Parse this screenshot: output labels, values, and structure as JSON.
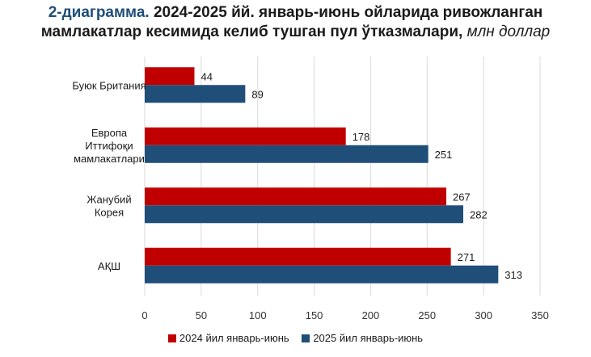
{
  "title": {
    "prefix": "2-диаграмма.",
    "line1_rest": " 2024-2025 йй. январь-июнь ойларида ривожланган",
    "line2_main": "мамлакатлар кесимида келиб тушган пул ўтказмалари, ",
    "unit": "млн доллар"
  },
  "colors": {
    "series_2024": "#c00000",
    "series_2025": "#1f4e79",
    "grid": "#d9d9d9"
  },
  "chart_data": {
    "type": "bar",
    "orientation": "horizontal",
    "categories": [
      [
        "Буюк Британия"
      ],
      [
        "Европа",
        "Иттифоқи",
        "мамлакатлари"
      ],
      [
        "Жанубий",
        "Корея"
      ],
      [
        "АҚШ"
      ]
    ],
    "series": [
      {
        "name": "2024 йил январь-июнь",
        "values": [
          44,
          178,
          267,
          271
        ]
      },
      {
        "name": "2025 йил январь-июнь",
        "values": [
          89,
          251,
          282,
          313
        ]
      }
    ],
    "xlim": [
      0,
      350
    ],
    "xticks": [
      0,
      50,
      100,
      150,
      200,
      250,
      300,
      350
    ],
    "grid": true,
    "legend": "bottom"
  }
}
